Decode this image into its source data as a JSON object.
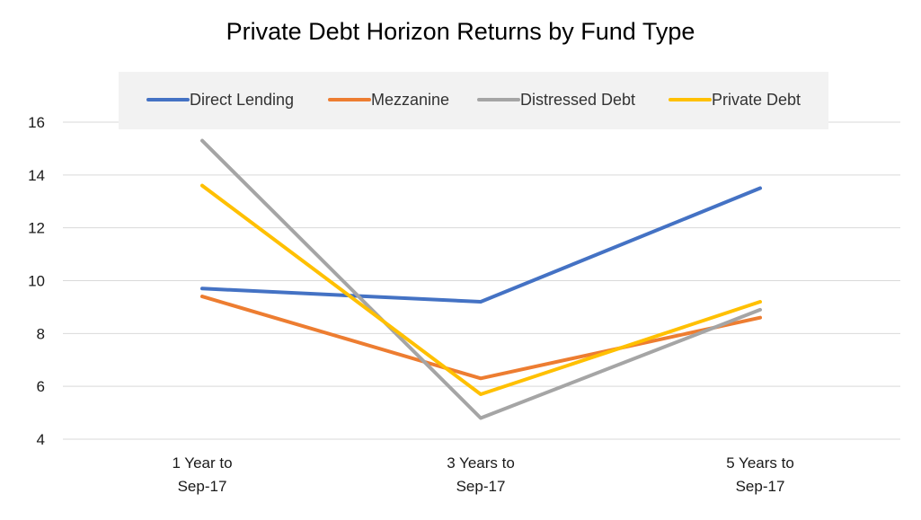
{
  "chart_data": {
    "type": "line",
    "title": "Private Debt Horizon Returns by Fund Type",
    "categories": [
      [
        "1 Year to",
        "Sep-17"
      ],
      [
        "3 Years to",
        "Sep-17"
      ],
      [
        "5 Years to",
        "Sep-17"
      ]
    ],
    "series": [
      {
        "name": "Direct Lending",
        "color": "#4472C4",
        "values": [
          9.7,
          9.2,
          13.5
        ]
      },
      {
        "name": "Mezzanine",
        "color": "#ED7D31",
        "values": [
          9.4,
          6.3,
          8.6
        ]
      },
      {
        "name": "Distressed Debt",
        "color": "#A5A5A5",
        "values": [
          15.3,
          4.8,
          8.9
        ]
      },
      {
        "name": "Private Debt",
        "color": "#FFC000",
        "values": [
          13.6,
          5.7,
          9.2
        ]
      }
    ],
    "ylim": [
      4,
      16
    ],
    "yticks": [
      4,
      6,
      8,
      10,
      12,
      14,
      16
    ],
    "grid": true,
    "legend_position": "top"
  }
}
